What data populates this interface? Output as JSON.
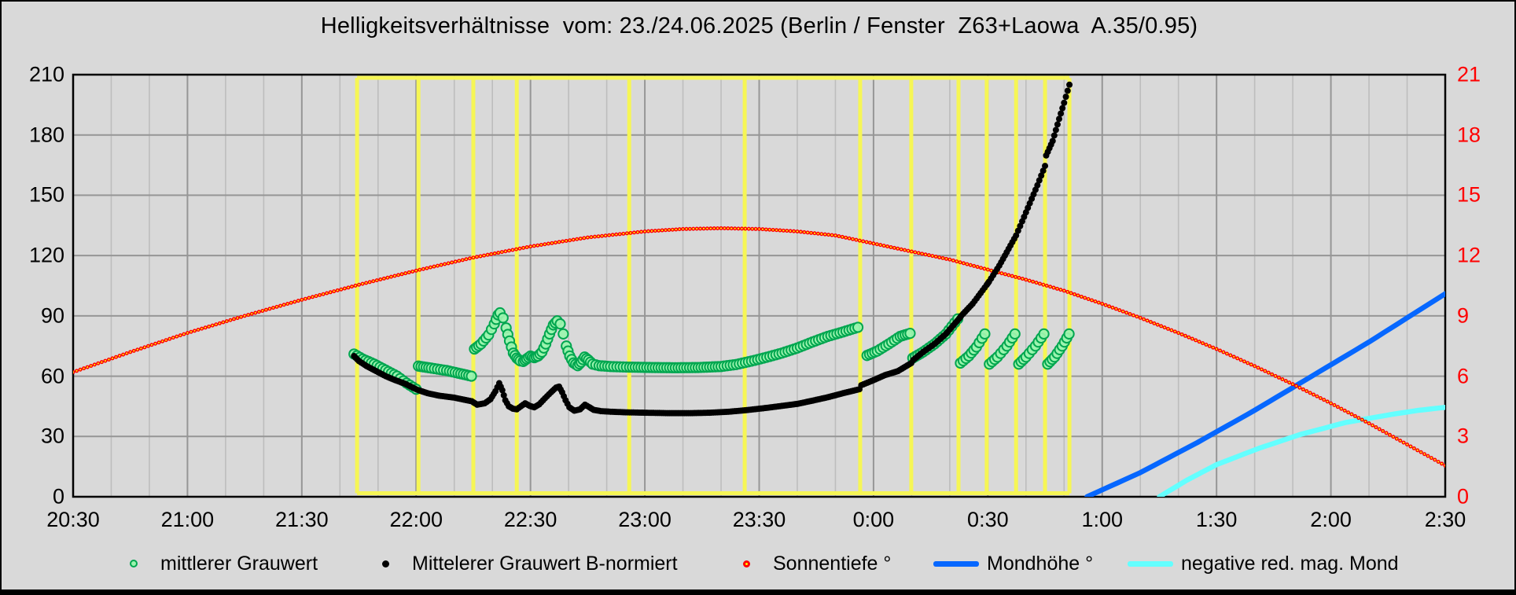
{
  "chart_data": {
    "type": "line",
    "title": "Helligkeitsverhältnisse  vom: 23./24.06.2025 (Berlin / Fenster  Z63+Laowa  A.35/0.95)",
    "background_color": "#d9d9d9",
    "grid": {
      "minor_every_min": 10,
      "major_every_min": 30,
      "minor_color": "#bdbdbd",
      "major_color": "#969696",
      "horizontal_every_units": 30
    },
    "x_axis": {
      "unit": "time of night",
      "start_label": "20:30",
      "end_label": "2:30",
      "total_minutes": 360,
      "tick_every_min": 30,
      "tick_labels": [
        "20:30",
        "21:00",
        "21:30",
        "22:00",
        "22:30",
        "23:00",
        "23:30",
        "0:00",
        "0:30",
        "1:00",
        "1:30",
        "2:00",
        "2:30"
      ]
    },
    "y_axis_left": {
      "min": 0,
      "max": 210,
      "step": 30,
      "ticks": [
        0,
        30,
        60,
        90,
        120,
        150,
        180,
        210
      ],
      "color": "#000000"
    },
    "y_axis_right": {
      "min": 0,
      "max": 21,
      "step": 3,
      "ticks": [
        0,
        3,
        6,
        9,
        12,
        15,
        18,
        21
      ],
      "color": "#ff0000"
    },
    "exposure_window": {
      "color": "#f6f655",
      "start_min": 74.5,
      "end_min": 261.4,
      "frame_marks_min": [
        74.5,
        90.6,
        105.0,
        116.4,
        145.9,
        176.2,
        206.5,
        219.9,
        232.3,
        239.7,
        247.4,
        255.0,
        261.4
      ]
    },
    "series": [
      {
        "id": "mondhoehe",
        "name": "Mondhöhe °",
        "style": "line",
        "axis": "right",
        "color": "#0667ff",
        "width": 6.5,
        "points": [
          [
            266,
            0
          ],
          [
            280,
            1.2
          ],
          [
            295,
            2.7
          ],
          [
            310,
            4.3
          ],
          [
            325,
            6.0
          ],
          [
            340,
            7.7
          ],
          [
            350,
            8.9
          ],
          [
            360,
            10.1
          ]
        ]
      },
      {
        "id": "mond_mag",
        "name": "negative red. mag. Mond",
        "style": "line",
        "axis": "right",
        "color": "#63ffff",
        "width": 6.5,
        "points": [
          [
            285,
            0
          ],
          [
            292,
            0.8
          ],
          [
            300,
            1.6
          ],
          [
            311,
            2.4
          ],
          [
            322,
            3.1
          ],
          [
            334,
            3.7
          ],
          [
            346,
            4.1
          ],
          [
            353,
            4.3
          ],
          [
            360,
            4.45
          ]
        ]
      },
      {
        "id": "sonnentiefe",
        "name": "Sonnentiefe °",
        "style": "bead",
        "axis": "right",
        "color": "#ff0000",
        "center_color": "#ffff00",
        "points": [
          [
            0,
            6.2
          ],
          [
            15,
            7.2
          ],
          [
            30,
            8.15
          ],
          [
            45,
            9.0
          ],
          [
            60,
            9.8
          ],
          [
            75,
            10.55
          ],
          [
            90,
            11.25
          ],
          [
            105,
            11.9
          ],
          [
            120,
            12.45
          ],
          [
            135,
            12.9
          ],
          [
            150,
            13.2
          ],
          [
            160,
            13.32
          ],
          [
            170,
            13.36
          ],
          [
            180,
            13.32
          ],
          [
            190,
            13.2
          ],
          [
            200,
            13.0
          ],
          [
            210,
            12.6
          ],
          [
            220,
            12.2
          ],
          [
            230,
            11.8
          ],
          [
            240,
            11.3
          ],
          [
            250,
            10.8
          ],
          [
            260,
            10.25
          ],
          [
            270,
            9.6
          ],
          [
            280,
            8.9
          ],
          [
            290,
            8.15
          ],
          [
            300,
            7.35
          ],
          [
            310,
            6.5
          ],
          [
            320,
            5.6
          ],
          [
            330,
            4.65
          ],
          [
            340,
            3.65
          ],
          [
            350,
            2.6
          ],
          [
            360,
            1.55
          ]
        ]
      },
      {
        "id": "grauwert",
        "name": "mittlerer Grauwert",
        "style": "ring",
        "axis": "left",
        "color": "#00a64f",
        "fill": "#9cf4ae",
        "segments": [
          [
            [
              73.7,
              71
            ],
            [
              76,
              68.5
            ],
            [
              79,
              66
            ],
            [
              82,
              63
            ],
            [
              85,
              60
            ],
            [
              87.5,
              56.5
            ],
            [
              90,
              53.5
            ]
          ],
          [
            [
              90.6,
              65
            ],
            [
              94,
              64
            ],
            [
              98,
              62.8
            ],
            [
              101,
              61.5
            ],
            [
              104.5,
              60
            ]
          ],
          [
            [
              105.3,
              73.5
            ],
            [
              107,
              76
            ],
            [
              109,
              80.5
            ],
            [
              110.5,
              86
            ],
            [
              111.5,
              90.5
            ],
            [
              112,
              91.5
            ],
            [
              112.8,
              89
            ],
            [
              113.6,
              84
            ],
            [
              114.5,
              77.5
            ],
            [
              115.5,
              71.5
            ],
            [
              116.4,
              69
            ],
            [
              117.3,
              67.6
            ],
            [
              118.1,
              67.3
            ],
            [
              119,
              68.6
            ],
            [
              120,
              70
            ],
            [
              121,
              69.2
            ],
            [
              122,
              70
            ],
            [
              123,
              72
            ],
            [
              124,
              76
            ],
            [
              125,
              81
            ],
            [
              126,
              85.5
            ],
            [
              127,
              87.5
            ],
            [
              127.8,
              86
            ],
            [
              128.6,
              81
            ],
            [
              129.4,
              75
            ],
            [
              130.3,
              70
            ],
            [
              131.3,
              66.6
            ],
            [
              132.4,
              65.2
            ],
            [
              133.3,
              67
            ],
            [
              134.2,
              69.5
            ],
            [
              135.2,
              68
            ],
            [
              136.3,
              66
            ],
            [
              138,
              65.2
            ],
            [
              141,
              64.8
            ],
            [
              146,
              64.5
            ],
            [
              152,
              64.3
            ],
            [
              158,
              64.2
            ],
            [
              164,
              64.3
            ],
            [
              170,
              64.8
            ],
            [
              174,
              65.8
            ],
            [
              178,
              67.5
            ],
            [
              182,
              69.4
            ],
            [
              186,
              71.5
            ],
            [
              190,
              74
            ],
            [
              194,
              77
            ],
            [
              198,
              79.8
            ],
            [
              202,
              82
            ],
            [
              205.9,
              84.3
            ]
          ],
          [
            [
              208.3,
              70.3
            ],
            [
              211,
              72.5
            ],
            [
              214,
              76
            ],
            [
              217,
              79.8
            ],
            [
              219.6,
              81.3
            ]
          ],
          [
            [
              220.3,
              69
            ],
            [
              223,
              72
            ],
            [
              226,
              76
            ],
            [
              229,
              81
            ],
            [
              232.1,
              88.5
            ]
          ],
          [
            [
              232.8,
              66.5
            ],
            [
              235,
              70
            ],
            [
              237,
              74.5
            ],
            [
              239.2,
              81
            ]
          ],
          [
            [
              240.4,
              66
            ],
            [
              242.5,
              69.5
            ],
            [
              245,
              75
            ],
            [
              247.1,
              81
            ]
          ],
          [
            [
              248.1,
              66
            ],
            [
              250,
              69.5
            ],
            [
              252.5,
              75
            ],
            [
              254.7,
              81
            ]
          ],
          [
            [
              255.7,
              66
            ],
            [
              257.5,
              69.5
            ],
            [
              259.5,
              75
            ],
            [
              261.3,
              81
            ]
          ]
        ]
      },
      {
        "id": "grauwert_norm",
        "name": "Mittelerer Grauwert B-normiert",
        "style": "dot",
        "axis": "left",
        "color": "#000000",
        "points": [
          [
            73.7,
            70
          ],
          [
            75,
            67.5
          ],
          [
            77,
            65
          ],
          [
            79.5,
            62.5
          ],
          [
            82,
            60
          ],
          [
            84.5,
            58
          ],
          [
            87,
            56.3
          ],
          [
            90.2,
            53.3
          ],
          [
            93,
            51.5
          ],
          [
            96,
            50.3
          ],
          [
            100,
            49.3
          ],
          [
            104.6,
            47.5
          ],
          [
            106,
            45.8
          ],
          [
            108,
            46.5
          ],
          [
            109.5,
            48.5
          ],
          [
            110.8,
            52.5
          ],
          [
            111.8,
            56.5
          ],
          [
            112.6,
            53
          ],
          [
            113.4,
            48
          ],
          [
            114.3,
            45
          ],
          [
            115.4,
            43.8
          ],
          [
            116.4,
            43.5
          ],
          [
            117.5,
            45
          ],
          [
            118.6,
            46.5
          ],
          [
            119.8,
            45.2
          ],
          [
            121,
            44.5
          ],
          [
            122.3,
            46
          ],
          [
            123.8,
            49
          ],
          [
            125.4,
            52
          ],
          [
            126.7,
            54.3
          ],
          [
            127.5,
            54.8
          ],
          [
            128.3,
            52
          ],
          [
            129.2,
            48
          ],
          [
            130.2,
            44.5
          ],
          [
            131.5,
            42.8
          ],
          [
            133,
            43.5
          ],
          [
            134.3,
            45.8
          ],
          [
            135.4,
            44.6
          ],
          [
            136.6,
            43.2
          ],
          [
            138.5,
            42.6
          ],
          [
            141,
            42.3
          ],
          [
            145,
            42
          ],
          [
            150,
            41.8
          ],
          [
            156,
            41.6
          ],
          [
            162,
            41.6
          ],
          [
            167,
            41.8
          ],
          [
            172,
            42.3
          ],
          [
            176.2,
            43
          ],
          [
            181,
            44
          ],
          [
            186,
            45.2
          ],
          [
            190,
            46.2
          ],
          [
            194,
            47.8
          ],
          [
            198,
            49.5
          ],
          [
            202,
            51.5
          ],
          [
            206.3,
            53.5
          ],
          [
            206.8,
            55.5
          ],
          [
            210,
            58
          ],
          [
            213,
            60.5
          ],
          [
            216.4,
            62.5
          ],
          [
            219.9,
            66.5
          ],
          [
            220.4,
            68
          ],
          [
            223,
            72
          ],
          [
            226,
            76
          ],
          [
            229,
            81
          ],
          [
            232.4,
            88.5
          ],
          [
            233,
            90
          ],
          [
            236,
            96
          ],
          [
            239.7,
            105.4
          ],
          [
            240.3,
            107
          ],
          [
            243,
            115
          ],
          [
            247.4,
            130
          ],
          [
            249,
            137
          ],
          [
            251,
            146
          ],
          [
            253,
            155
          ],
          [
            255,
            164.6
          ],
          [
            255.3,
            169.8
          ],
          [
            257,
            177
          ],
          [
            258.7,
            188
          ],
          [
            260,
            196
          ],
          [
            261.4,
            205
          ]
        ]
      }
    ]
  },
  "legend": {
    "items": [
      {
        "marker": "green-circle",
        "label": "mittlerer Grauwert"
      },
      {
        "marker": "black-dot",
        "label": "Mittelerer Grauwert B-normiert"
      },
      {
        "marker": "red-dot",
        "label": "Sonnentiefe °"
      },
      {
        "marker": "blue-line",
        "label": "Mondhöhe °"
      },
      {
        "marker": "cyan-line",
        "label": "negative red. mag. Mond"
      }
    ]
  }
}
